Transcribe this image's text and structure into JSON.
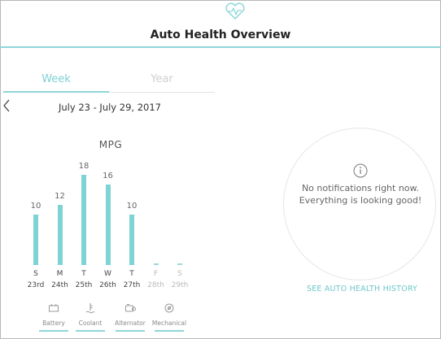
{
  "header": {
    "title": "Auto Health Overview",
    "icon": "heart-pulse-icon"
  },
  "tabs": [
    {
      "label": "Week",
      "active": true
    },
    {
      "label": "Year",
      "active": false
    }
  ],
  "date_range": "July 23 - July 29, 2017",
  "chart_data": {
    "type": "bar",
    "title": "MPG",
    "categories": [
      "S",
      "M",
      "T",
      "W",
      "T",
      "F",
      "S"
    ],
    "dates": [
      "23rd",
      "24th",
      "25th",
      "26th",
      "27th",
      "28th",
      "29th"
    ],
    "values": [
      10,
      12,
      18,
      16,
      10,
      null,
      null
    ],
    "value_labels": [
      "10",
      "12",
      "18",
      "16",
      "10",
      "",
      ""
    ],
    "ylim": [
      0,
      18
    ],
    "bar_color": "#7fd3d5"
  },
  "categories_nav": [
    {
      "label": "Battery",
      "icon": "battery-icon"
    },
    {
      "label": "Coolant",
      "icon": "coolant-icon"
    },
    {
      "label": "Alternator",
      "icon": "alternator-icon"
    },
    {
      "label": "Mechanical",
      "icon": "mechanical-gear-icon"
    }
  ],
  "notification": {
    "message": "No notifications right now. Everything is looking good!",
    "icon": "info-icon"
  },
  "history_link": "SEE AUTO HEALTH HISTORY",
  "colors": {
    "accent": "#8fd6d8",
    "link": "#6fc7cb"
  }
}
